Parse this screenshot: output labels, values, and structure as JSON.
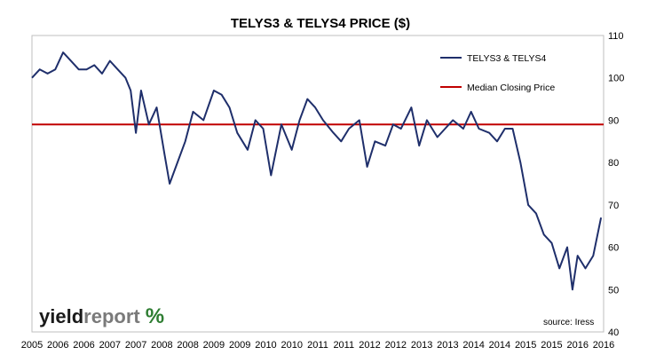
{
  "chart_data": {
    "type": "line",
    "title": "TELYS3 & TELYS4 PRICE ($)",
    "xlabel": "",
    "ylabel": "",
    "x_ticks": [
      "2005",
      "2006",
      "2006",
      "2007",
      "2007",
      "2008",
      "2008",
      "2009",
      "2009",
      "2010",
      "2010",
      "2011",
      "2011",
      "2012",
      "2012",
      "2013",
      "2013",
      "2014",
      "2014",
      "2015",
      "2015",
      "2016",
      "2016"
    ],
    "y_ticks": [
      40,
      50,
      60,
      70,
      80,
      90,
      100,
      110
    ],
    "ylim": [
      40,
      110
    ],
    "grid": false,
    "legend_position": "top-right",
    "colors": {
      "price_line": "#1f2f6b",
      "median_line": "#c00000",
      "logo_percent": "#2e7d32"
    },
    "series": [
      {
        "name": "TELYS3 & TELYS4",
        "x_index": [
          0,
          0.3,
          0.6,
          0.9,
          1.2,
          1.5,
          1.8,
          2.1,
          2.4,
          2.7,
          3.0,
          3.3,
          3.6,
          3.8,
          4.0,
          4.2,
          4.5,
          4.8,
          5.1,
          5.3,
          5.6,
          5.9,
          6.2,
          6.6,
          7.0,
          7.3,
          7.6,
          7.9,
          8.3,
          8.6,
          8.9,
          9.2,
          9.6,
          10.0,
          10.3,
          10.6,
          10.9,
          11.2,
          11.6,
          11.9,
          12.2,
          12.6,
          12.9,
          13.2,
          13.6,
          13.9,
          14.2,
          14.6,
          14.9,
          15.2,
          15.6,
          15.9,
          16.2,
          16.6,
          16.9,
          17.2,
          17.6,
          17.9,
          18.2,
          18.5,
          18.8,
          19.1,
          19.4,
          19.7,
          20.0,
          20.3,
          20.6,
          20.8,
          21.0,
          21.3,
          21.6,
          21.9
        ],
        "values": [
          100,
          102,
          101,
          102,
          106,
          104,
          102,
          102,
          103,
          101,
          104,
          102,
          100,
          97,
          87,
          97,
          89,
          93,
          82,
          75,
          80,
          85,
          92,
          90,
          97,
          96,
          93,
          87,
          83,
          90,
          88,
          77,
          89,
          83,
          90,
          95,
          93,
          90,
          87,
          85,
          88,
          90,
          79,
          85,
          84,
          89,
          88,
          93,
          84,
          90,
          86,
          88,
          90,
          88,
          92,
          88,
          87,
          85,
          88,
          88,
          80,
          70,
          68,
          63,
          61,
          55,
          60,
          50,
          58,
          55,
          58,
          67
        ]
      },
      {
        "name": "Median Closing Price",
        "values": [
          89,
          89
        ]
      }
    ],
    "annotations": [
      "source: Iress"
    ],
    "logo": {
      "part1": "yield",
      "part2": "report",
      "symbol": "%"
    }
  }
}
